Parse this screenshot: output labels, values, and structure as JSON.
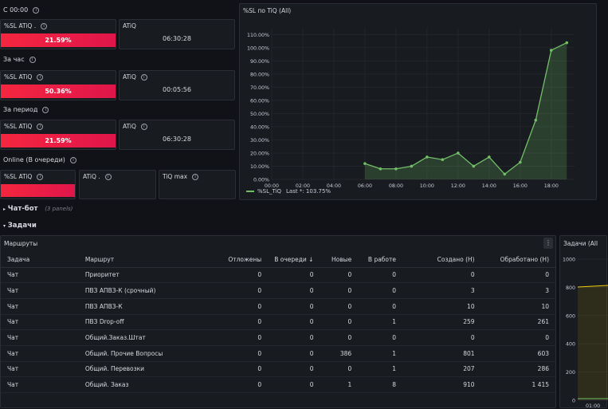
{
  "sections": {
    "c0000": "С 00:00",
    "hour": "За час",
    "period": "За период",
    "online": "Online (В очереди)"
  },
  "stats": {
    "row1": {
      "sl_title": "%SL ATiQ .",
      "sl_value": "21.59%",
      "atiq_title": "ATiQ",
      "atiq_value": "06:30:28"
    },
    "row2": {
      "sl_title": "%SL ATiQ",
      "sl_value": "50.36%",
      "atiq_title": "ATiQ",
      "atiq_value": "00:05:56"
    },
    "row3": {
      "sl_title": "%SL ATiQ",
      "sl_value": "21.59%",
      "atiq_title": "ATiQ",
      "atiq_value": "06:30:28"
    },
    "row4": {
      "sl_title": "%SL ATiQ",
      "atiq_title": "ATiQ .",
      "tiqmax_title": "TiQ max"
    }
  },
  "chart_panel": {
    "title": "%SL по TiQ (All)",
    "legend_series": "%SL_TiQ",
    "legend_last": "Last *: 103.75%"
  },
  "chart_data": {
    "type": "area",
    "title": "%SL по TiQ (All)",
    "x_ticks": [
      "00:00",
      "02:00",
      "04:00",
      "06:00",
      "08:00",
      "10:00",
      "12:00",
      "14:00",
      "16:00",
      "18:00"
    ],
    "y_ticks": [
      "0.00%",
      "10.00%",
      "20.00%",
      "30.00%",
      "40.00%",
      "50.00%",
      "60.00%",
      "70.00%",
      "80.00%",
      "90.00%",
      "100.00%",
      "110.00%"
    ],
    "ylim": [
      0,
      115
    ],
    "xlim_hours": [
      0,
      19.5
    ],
    "series": [
      {
        "name": "%SL_TiQ",
        "color": "#73bf69",
        "x": [
          6,
          7,
          8,
          9,
          10,
          11,
          12,
          13,
          14,
          15,
          16,
          17,
          18,
          19
        ],
        "y": [
          12,
          8,
          8,
          10,
          17,
          15,
          20,
          10,
          17,
          4,
          13,
          45,
          98,
          103.75
        ]
      }
    ]
  },
  "collapsed_row": {
    "title": "Чат-бот",
    "count": "(3 panels)"
  },
  "tasks_row": {
    "title": "Задачи"
  },
  "routes_panel": {
    "title": "Маршруты",
    "menu_icon": "⋮",
    "columns": [
      "Задача",
      "Маршрут",
      "Отложены",
      "В очереди",
      "Новые",
      "В работе",
      "Создано (Н)",
      "Обработано (Н)"
    ],
    "sort_arrow": "↓",
    "rows": [
      [
        "Чат",
        "Приоритет",
        "0",
        "0",
        "0",
        "0",
        "0",
        "0"
      ],
      [
        "Чат",
        "ПВЗ АПВЗ-К (срочный)",
        "0",
        "0",
        "0",
        "0",
        "3",
        "3"
      ],
      [
        "Чат",
        "ПВЗ АПВЗ-К",
        "0",
        "0",
        "0",
        "0",
        "10",
        "10"
      ],
      [
        "Чат",
        "ПВЗ Drop-off",
        "0",
        "0",
        "0",
        "1",
        "259",
        "261"
      ],
      [
        "Чат",
        "Общий.Заказ.Штат",
        "0",
        "0",
        "0",
        "0",
        "0",
        "0"
      ],
      [
        "Чат",
        "Общий. Прочие Вопросы",
        "0",
        "0",
        "386",
        "1",
        "801",
        "603"
      ],
      [
        "Чат",
        "Общий. Перевозки",
        "0",
        "0",
        "0",
        "1",
        "207",
        "286"
      ],
      [
        "Чат",
        "Общий. Заказ",
        "0",
        "0",
        "1",
        "8",
        "910",
        "1 415"
      ]
    ]
  },
  "tasks_panel": {
    "title": "Задачи (All",
    "y_ticks": [
      "1000",
      "800",
      "600",
      "400",
      "200",
      "0"
    ],
    "x_tick": "01:00"
  }
}
